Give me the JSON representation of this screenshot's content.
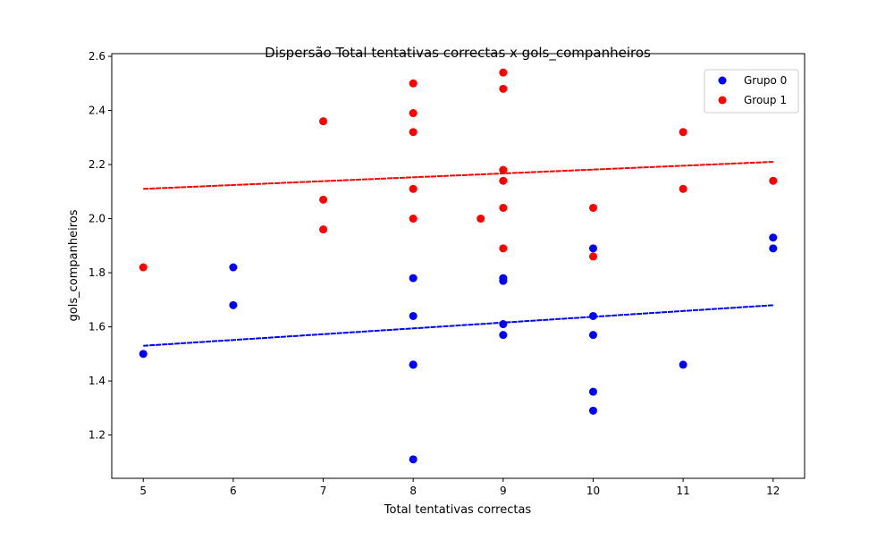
{
  "chart_data": {
    "type": "scatter",
    "title": "Dispersão Total tentativas correctas x gols_companheiros",
    "xlabel": "Total tentativas correctas",
    "ylabel": "gols_companheiros",
    "xlim": [
      4.65,
      12.35
    ],
    "ylim": [
      1.04,
      2.61
    ],
    "xticks": [
      5,
      6,
      7,
      8,
      9,
      10,
      11,
      12
    ],
    "yticks": [
      1.2,
      1.4,
      1.6,
      1.8,
      2.0,
      2.2,
      2.4,
      2.6
    ],
    "ytick_labels": [
      "1.2",
      "1.4",
      "1.6",
      "1.8",
      "2.0",
      "2.2",
      "2.4",
      "2.6"
    ],
    "grid": false,
    "legend_position": "top-right",
    "series": [
      {
        "name": "Grupo 0",
        "color": "#0000ff",
        "points": [
          [
            5,
            1.5
          ],
          [
            6,
            1.82
          ],
          [
            6,
            1.68
          ],
          [
            8,
            1.78
          ],
          [
            8,
            1.64
          ],
          [
            8,
            1.46
          ],
          [
            8,
            1.46
          ],
          [
            8,
            1.11
          ],
          [
            9,
            1.78
          ],
          [
            9,
            1.77
          ],
          [
            9,
            1.61
          ],
          [
            9,
            1.57
          ],
          [
            10,
            1.89
          ],
          [
            10,
            1.64
          ],
          [
            10,
            1.57
          ],
          [
            10,
            1.36
          ],
          [
            10,
            1.29
          ],
          [
            11,
            1.46
          ],
          [
            12,
            1.93
          ],
          [
            12,
            1.89
          ]
        ],
        "trend": {
          "x": [
            5,
            12
          ],
          "y": [
            1.53,
            1.68
          ]
        }
      },
      {
        "name": "Group 1",
        "color": "#ff0000",
        "points": [
          [
            5,
            1.82
          ],
          [
            7,
            2.36
          ],
          [
            7,
            2.07
          ],
          [
            7,
            1.96
          ],
          [
            8,
            2.5
          ],
          [
            8,
            2.39
          ],
          [
            8,
            2.32
          ],
          [
            8,
            2.11
          ],
          [
            8,
            2.0
          ],
          [
            8.75,
            2.0
          ],
          [
            9,
            2.54
          ],
          [
            9,
            2.48
          ],
          [
            9,
            2.18
          ],
          [
            9,
            2.14
          ],
          [
            9,
            2.04
          ],
          [
            9,
            1.89
          ],
          [
            10,
            2.04
          ],
          [
            10,
            1.86
          ],
          [
            11,
            2.32
          ],
          [
            11,
            2.11
          ],
          [
            12,
            2.14
          ]
        ],
        "trend": {
          "x": [
            5,
            12
          ],
          "y": [
            2.11,
            2.21
          ]
        }
      }
    ]
  }
}
